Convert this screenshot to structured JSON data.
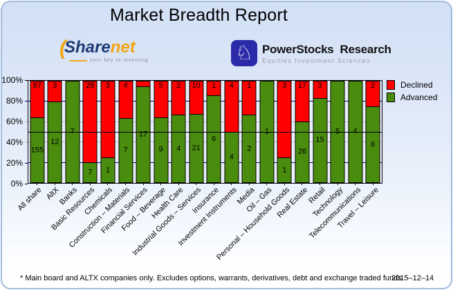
{
  "page": {
    "title": "Market Breadth Report",
    "footnote": "* Main board and ALTX companies only. Excludes options, warrants, derivatives, debt and exchange traded funds",
    "date": "2015–12–14"
  },
  "logos": {
    "sharenet": {
      "paren": "(",
      "word_part1": "Share",
      "word_part2": "net",
      "tagline": "your key to investing",
      "navy": "#1b3a73",
      "orange": "#f2a413"
    },
    "powerstocks": {
      "icon": "knight-chess-icon",
      "icon_glyph": "♘",
      "name_part1": "PowerStocks",
      "name_part2": "Research",
      "subtitle": "Equities Investment Sciences",
      "blue": "#2b2baa"
    }
  },
  "legend": [
    {
      "label": "Declined",
      "color": "#ff0000"
    },
    {
      "label": "Advanced",
      "color": "#4a8c0d"
    }
  ],
  "chart_data": {
    "type": "bar",
    "stacked": true,
    "normalized_to": 100,
    "ylabel": "",
    "xlabel": "",
    "ylim": [
      0,
      100
    ],
    "y_ticks": [
      {
        "pct": 0,
        "label": "0%",
        "tick_color": "#000000"
      },
      {
        "pct": 20,
        "label": "20%",
        "tick_color": "#000080"
      },
      {
        "pct": 40,
        "label": "40%",
        "tick_color": "#b9b9b9"
      },
      {
        "pct": 60,
        "label": "60%",
        "tick_color": "#b9b9b9"
      },
      {
        "pct": 80,
        "label": "80%",
        "tick_color": "#000080"
      },
      {
        "pct": 100,
        "label": "100%",
        "tick_color": "#000000"
      }
    ],
    "gridlines": [
      {
        "pct": 20,
        "color": "#000080"
      },
      {
        "pct": 40,
        "color": "#b9b9b9"
      },
      {
        "pct": 60,
        "color": "#b9b9b9"
      },
      {
        "pct": 80,
        "color": "#000080"
      }
    ],
    "mid_line": {
      "pct": 50,
      "color": "#000000"
    },
    "colors": {
      "advanced": "#4a8c0d",
      "declined": "#ff0000"
    },
    "series_names": [
      "Advanced",
      "Declined"
    ],
    "categories": [
      {
        "name": "All share",
        "advanced": 155,
        "declined": 87
      },
      {
        "name": "AltX",
        "advanced": 12,
        "declined": 3
      },
      {
        "name": "Banks",
        "advanced": 7,
        "declined": 0
      },
      {
        "name": "Basic Resources",
        "advanced": 7,
        "declined": 28
      },
      {
        "name": "Chemicals",
        "advanced": 1,
        "declined": 3
      },
      {
        "name": "Construction – Materials",
        "advanced": 7,
        "declined": 4
      },
      {
        "name": "Financial Services",
        "advanced": 17,
        "declined": 1,
        "declined_label_hidden": true
      },
      {
        "name": "Food – Beverage",
        "advanced": 9,
        "declined": 5
      },
      {
        "name": "Health Care",
        "advanced": 4,
        "declined": 2
      },
      {
        "name": "Industrial Goods – Services",
        "advanced": 21,
        "declined": 10
      },
      {
        "name": "Insurance",
        "advanced": 6,
        "declined": 1
      },
      {
        "name": "Investment Instruments",
        "advanced": 4,
        "declined": 4
      },
      {
        "name": "Media",
        "advanced": 2,
        "declined": 1
      },
      {
        "name": "Oil – Gas",
        "advanced": 1,
        "declined": 0
      },
      {
        "name": "Personal – Household Goods",
        "advanced": 1,
        "declined": 3
      },
      {
        "name": "Real Estate",
        "advanced": 26,
        "declined": 17
      },
      {
        "name": "Retail",
        "advanced": 15,
        "declined": 3
      },
      {
        "name": "Technology",
        "advanced": 5,
        "declined": 0
      },
      {
        "name": "Telecommunications",
        "advanced": 4,
        "declined": 0
      },
      {
        "name": "Travel – Leisure",
        "advanced": 6,
        "declined": 2
      }
    ]
  }
}
